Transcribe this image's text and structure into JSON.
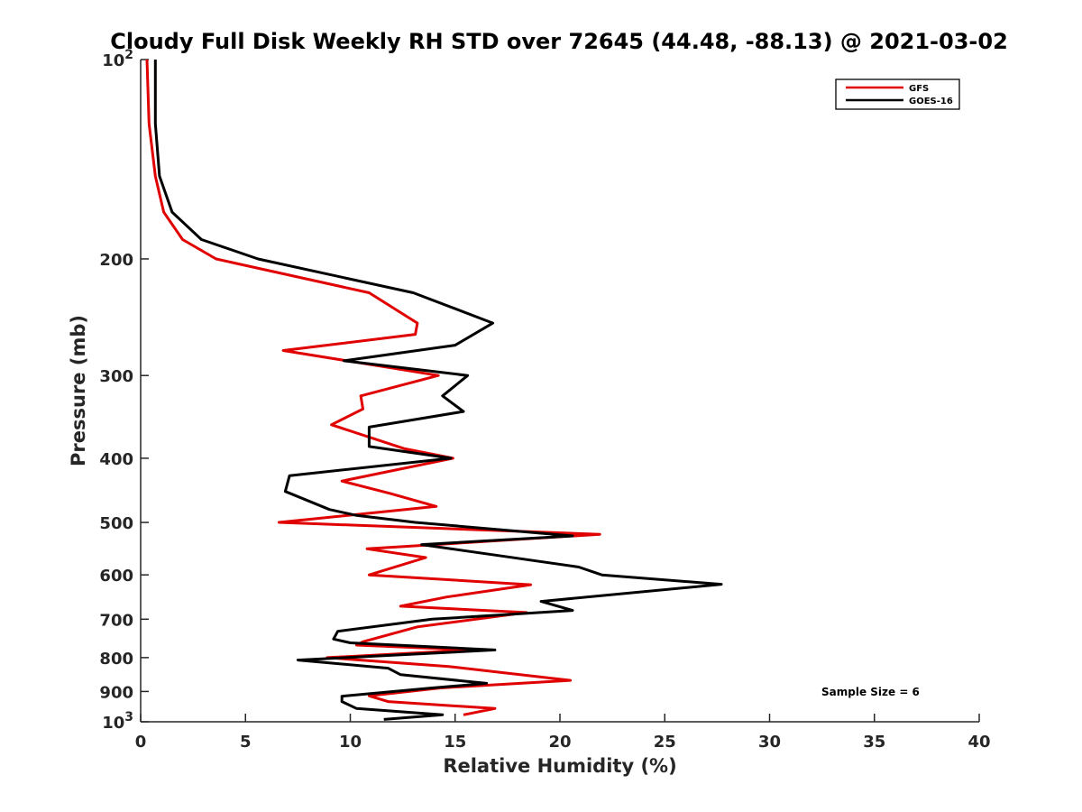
{
  "chart_data": {
    "type": "line",
    "title": "Cloudy Full Disk Weekly RH STD over 72645 (44.48, -88.13) @ 2021-03-02",
    "xlabel": "Relative Humidity (%)",
    "ylabel": "Pressure (mb)",
    "xlim": [
      0,
      40
    ],
    "ylim": [
      100,
      1000
    ],
    "y_scale": "log",
    "y_reversed": true,
    "grid": false,
    "legend_position": "top-right",
    "x_ticks": [
      "0",
      "5",
      "10",
      "15",
      "20",
      "25",
      "30",
      "35",
      "40"
    ],
    "y_ticks": [
      {
        "value": 100,
        "label": "10",
        "sup": "2"
      },
      {
        "value": 200,
        "label": "200"
      },
      {
        "value": 300,
        "label": "300"
      },
      {
        "value": 400,
        "label": "400"
      },
      {
        "value": 500,
        "label": "500"
      },
      {
        "value": 600,
        "label": "600"
      },
      {
        "value": 700,
        "label": "700"
      },
      {
        "value": 800,
        "label": "800"
      },
      {
        "value": 900,
        "label": "900"
      },
      {
        "value": 1000,
        "label": "10",
        "sup": "3"
      }
    ],
    "annotation": "Sample Size = 6",
    "series": [
      {
        "name": "GFS",
        "color": "#e00000",
        "points": [
          [
            0.3,
            100
          ],
          [
            0.4,
            125
          ],
          [
            0.7,
            150
          ],
          [
            1.1,
            170
          ],
          [
            2.0,
            187
          ],
          [
            3.6,
            200
          ],
          [
            10.9,
            225
          ],
          [
            13.2,
            250
          ],
          [
            13.1,
            260
          ],
          [
            6.8,
            275
          ],
          [
            14.2,
            300
          ],
          [
            10.5,
            322
          ],
          [
            10.6,
            337
          ],
          [
            9.1,
            356
          ],
          [
            12.6,
            387
          ],
          [
            14.9,
            400
          ],
          [
            9.6,
            433
          ],
          [
            11.9,
            452
          ],
          [
            14.1,
            473
          ],
          [
            6.6,
            500
          ],
          [
            21.9,
            521
          ],
          [
            10.8,
            548
          ],
          [
            13.6,
            565
          ],
          [
            10.9,
            600
          ],
          [
            18.6,
            621
          ],
          [
            14.6,
            648
          ],
          [
            12.4,
            669
          ],
          [
            18.4,
            684
          ],
          [
            13.2,
            719
          ],
          [
            10.6,
            757
          ],
          [
            10.3,
            766
          ],
          [
            15.8,
            779
          ],
          [
            8.9,
            800
          ],
          [
            14.7,
            825
          ],
          [
            20.5,
            866
          ],
          [
            14.3,
            889
          ],
          [
            10.9,
            914
          ],
          [
            11.8,
            932
          ],
          [
            16.9,
            955
          ],
          [
            15.4,
            976
          ]
        ]
      },
      {
        "name": "GOES-16",
        "color": "#000000",
        "points": [
          [
            0.7,
            100
          ],
          [
            0.7,
            125
          ],
          [
            0.9,
            150
          ],
          [
            1.5,
            170
          ],
          [
            2.9,
            187
          ],
          [
            5.6,
            200
          ],
          [
            13.0,
            225
          ],
          [
            16.8,
            250
          ],
          [
            15.0,
            270
          ],
          [
            9.7,
            285
          ],
          [
            15.6,
            300
          ],
          [
            14.4,
            322
          ],
          [
            15.4,
            340
          ],
          [
            10.9,
            359
          ],
          [
            10.9,
            384
          ],
          [
            14.8,
            400
          ],
          [
            7.1,
            425
          ],
          [
            6.9,
            449
          ],
          [
            9.0,
            478
          ],
          [
            10.3,
            488
          ],
          [
            13.1,
            500
          ],
          [
            20.6,
            524
          ],
          [
            13.4,
            540
          ],
          [
            16.9,
            560
          ],
          [
            20.9,
            584
          ],
          [
            22.0,
            600
          ],
          [
            27.7,
            620
          ],
          [
            19.1,
            658
          ],
          [
            20.6,
            679
          ],
          [
            13.9,
            700
          ],
          [
            9.4,
            730
          ],
          [
            9.2,
            750
          ],
          [
            10.0,
            760
          ],
          [
            16.9,
            779
          ],
          [
            7.5,
            807
          ],
          [
            11.8,
            830
          ],
          [
            12.4,
            849
          ],
          [
            16.5,
            875
          ],
          [
            13.9,
            889
          ],
          [
            9.6,
            915
          ],
          [
            9.6,
            932
          ],
          [
            10.3,
            955
          ],
          [
            14.4,
            976
          ],
          [
            11.6,
            992
          ]
        ]
      }
    ]
  }
}
